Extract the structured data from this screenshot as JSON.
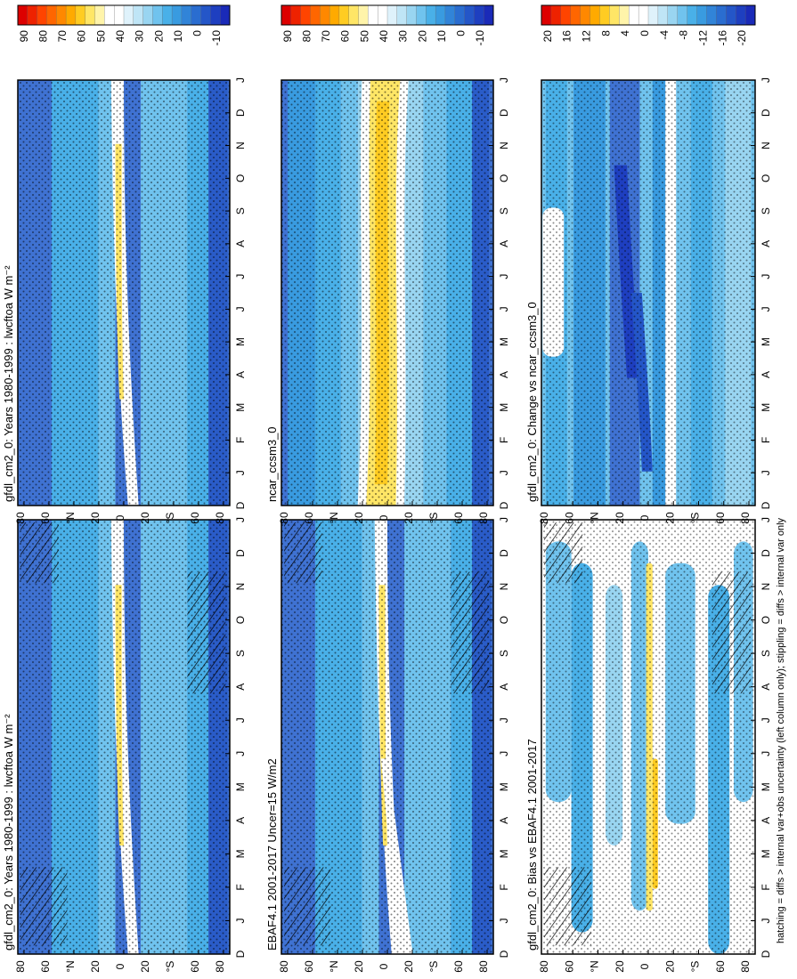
{
  "figure": {
    "footnote": "hatching = diffs > internal var+obs uncertainty (left column only); stippling = diffs > internal var only"
  },
  "colorbars": {
    "abs": {
      "labels": [
        "90",
        "80",
        "70",
        "60",
        "50",
        "40",
        "30",
        "20",
        "10",
        "0",
        "-10"
      ],
      "colors": [
        "#dd0000",
        "#ee2200",
        "#ff4400",
        "#ff6600",
        "#ff8800",
        "#ffaa00",
        "#ffcc22",
        "#ffe666",
        "#fff4aa",
        "#ffffff",
        "#ffffff",
        "#dff2fb",
        "#bfe5f6",
        "#99d5f1",
        "#70c3ee",
        "#49b0e8",
        "#399be0",
        "#3184d8",
        "#2a6dd0",
        "#2456c8",
        "#1e3fc0",
        "#1a2ab8"
      ]
    },
    "diff": {
      "labels": [
        "20",
        "16",
        "12",
        "8",
        "4",
        "0",
        "-4",
        "-8",
        "-12",
        "-16",
        "-20"
      ],
      "colors": [
        "#dd0000",
        "#ee2200",
        "#ff4400",
        "#ff6600",
        "#ff8800",
        "#ffaa00",
        "#ffcc22",
        "#ffe666",
        "#fff4aa",
        "#ffffff",
        "#ffffff",
        "#dff2fb",
        "#bfe5f6",
        "#99d5f1",
        "#70c3ee",
        "#49b0e8",
        "#399be0",
        "#3184d8",
        "#2a6dd0",
        "#2456c8",
        "#1e3fc0",
        "#1a2ab8"
      ]
    }
  },
  "chart_data": [
    {
      "type": "heatmap",
      "title": "gfdl_cm2_0: Years 1980-1999 : lwcftoa W m⁻²",
      "x_ticks": [
        "D",
        "J",
        "F",
        "M",
        "A",
        "M",
        "J",
        "J",
        "A",
        "S",
        "O",
        "N",
        "D",
        "J"
      ],
      "y_ticks": [
        "80",
        "60",
        "°N",
        "20",
        "0",
        "20",
        "°S",
        "60",
        "80"
      ],
      "colorbar": "abs"
    },
    {
      "type": "heatmap",
      "title": "gfdl_cm2_0: Years 1980-1999 : lwcftoa W m⁻²",
      "x_ticks": [
        "D",
        "J",
        "F",
        "M",
        "A",
        "M",
        "J",
        "J",
        "A",
        "S",
        "O",
        "N",
        "D",
        "J"
      ],
      "y_ticks": [
        "80",
        "60",
        "°N",
        "20",
        "0",
        "20",
        "°S",
        "60",
        "80"
      ],
      "colorbar": "abs"
    },
    {
      "type": "heatmap",
      "title": "EBAF4.1 2001-2017 Uncer=15 W/m2",
      "x_ticks": [
        "D",
        "J",
        "F",
        "M",
        "A",
        "M",
        "J",
        "J",
        "A",
        "S",
        "O",
        "N",
        "D",
        "J"
      ],
      "y_ticks": [
        "80",
        "60",
        "°N",
        "20",
        "0",
        "20",
        "°S",
        "60",
        "80"
      ],
      "colorbar": "abs"
    },
    {
      "type": "heatmap",
      "title": "ncar_ccsm3_0",
      "x_ticks": [
        "D",
        "J",
        "F",
        "M",
        "A",
        "M",
        "J",
        "J",
        "A",
        "S",
        "O",
        "N",
        "D",
        "J"
      ],
      "y_ticks": [
        "80",
        "60",
        "°N",
        "20",
        "0",
        "20",
        "°S",
        "60",
        "80"
      ],
      "colorbar": "abs"
    },
    {
      "type": "heatmap",
      "title": "gfdl_cm2_0: Bias vs EBAF4.1 2001-2017",
      "x_ticks": [
        "D",
        "J",
        "F",
        "M",
        "A",
        "M",
        "J",
        "J",
        "A",
        "S",
        "O",
        "N",
        "D",
        "J"
      ],
      "y_ticks": [
        "80",
        "60",
        "°N",
        "20",
        "0",
        "20",
        "°S",
        "60",
        "80"
      ],
      "colorbar": "diff"
    },
    {
      "type": "heatmap",
      "title": "gfdl_cm2_0: Change vs ncar_ccsm3_0",
      "x_ticks": [
        "D",
        "J",
        "F",
        "M",
        "A",
        "M",
        "J",
        "J",
        "A",
        "S",
        "O",
        "N",
        "D",
        "J"
      ],
      "y_ticks": [
        "80",
        "60",
        "°N",
        "20",
        "0",
        "20",
        "°S",
        "60",
        "80"
      ],
      "colorbar": "diff"
    }
  ]
}
